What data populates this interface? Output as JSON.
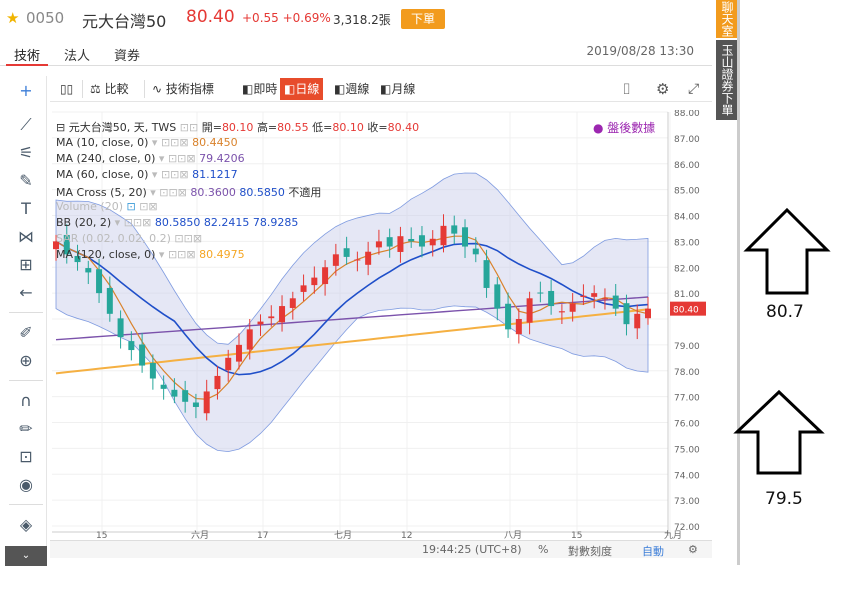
{
  "header": {
    "code": "0050",
    "name": "元大台灣50",
    "price": "80.40",
    "change": "+0.55 +0.69%",
    "volume": "3,318.2張",
    "order_button": "下單"
  },
  "tabs": [
    {
      "label": "技術"
    },
    {
      "label": "法人"
    },
    {
      "label": "資券"
    }
  ],
  "datetime": "2019/08/28 13:30",
  "toolbar": {
    "compare": "比較",
    "indicators": "技術指標",
    "realtime": "即時",
    "daily": "日線",
    "weekly": "週線",
    "monthly": "月線"
  },
  "legend": {
    "main": "元大台灣50, 天, TWS",
    "open_label": "開=",
    "open": "80.10",
    "high_label": "高=",
    "high": "80.55",
    "low_label": "低=",
    "low": "80.10",
    "close_label": "收=",
    "close": "80.40",
    "ma10": "MA (10, close, 0)",
    "ma10_val": "80.4450",
    "ma240": "MA (240, close, 0)",
    "ma240_val": "79.4206",
    "ma60": "MA (60, close, 0)",
    "ma60_val": "81.1217",
    "macross": "MA Cross (5, 20)",
    "macross_v1": "80.3600",
    "macross_v2": "80.5850",
    "macross_v3": "不適用",
    "volume": "Volume (20)",
    "bb": "BB (20, 2)",
    "bb_v1": "80.5850",
    "bb_v2": "82.2415",
    "bb_v3": "78.9285",
    "sar": "SAR (0.02, 0.02, 0.2)",
    "ma120": "MA (120, close, 0)",
    "ma120_val": "80.4975",
    "after_hours": "盤後數據"
  },
  "price_axis": [
    "88.00",
    "87.00",
    "86.00",
    "85.00",
    "84.00",
    "83.00",
    "82.00",
    "81.00",
    "80.40",
    "79.00",
    "78.00",
    "77.00",
    "76.00",
    "75.00",
    "74.00",
    "73.00",
    "72.00"
  ],
  "time_axis": [
    "15",
    "六月",
    "17",
    "七月",
    "12",
    "八月",
    "15",
    "九月"
  ],
  "bottombar": {
    "time": "19:44:25 (UTC+8)",
    "percent": "%",
    "log": "對數刻度",
    "auto": "自動"
  },
  "side_tabs": {
    "tab1": "聊天室",
    "tab2": "玉山證券下單"
  },
  "annotations": {
    "upper": "80.7",
    "lower": "79.5"
  },
  "colors": {
    "up": "#e53935",
    "down": "#26a69a",
    "accent": "#e74c2b",
    "ma10": "#d9822b",
    "ma240": "#7b52ab",
    "ma60": "#1f4fc9",
    "ma120": "#f5b042",
    "bb_fill": "#c5cae9"
  },
  "chart_data": {
    "type": "candlestick",
    "ylim": [
      72,
      88
    ],
    "closes": [
      83.0,
      82.5,
      82.2,
      81.8,
      81.0,
      80.2,
      79.3,
      78.8,
      78.2,
      77.7,
      77.3,
      77.0,
      76.8,
      76.6,
      77.2,
      77.8,
      78.5,
      79.0,
      79.6,
      79.9,
      80.1,
      80.5,
      80.8,
      81.3,
      81.6,
      82.0,
      82.5,
      82.4,
      82.3,
      82.6,
      83.0,
      82.8,
      83.2,
      83.0,
      82.8,
      83.1,
      83.6,
      83.3,
      82.8,
      82.5,
      81.2,
      80.4,
      79.6,
      80.0,
      80.8,
      81.0,
      80.5,
      80.3,
      80.6,
      80.9,
      81.0,
      80.8,
      80.4,
      79.8,
      80.2,
      80.4
    ]
  }
}
